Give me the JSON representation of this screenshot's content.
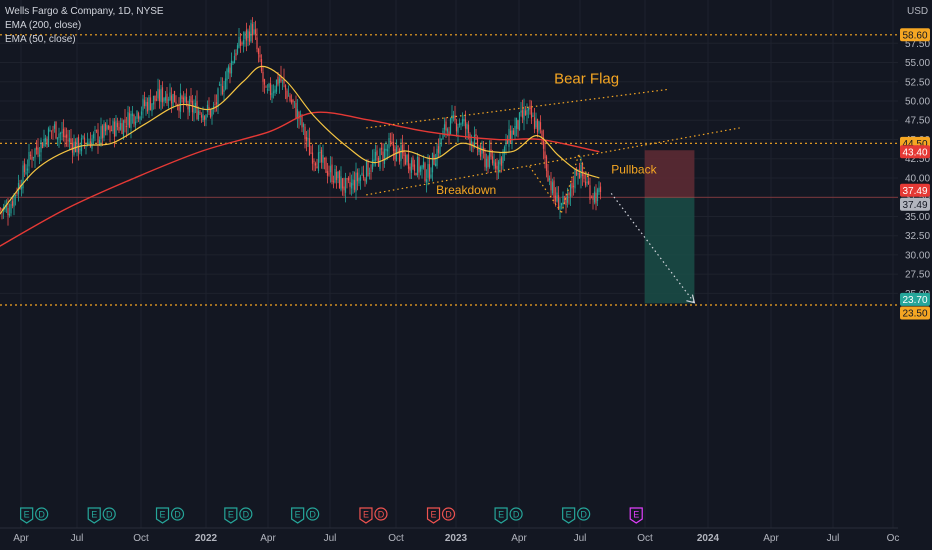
{
  "header": {
    "symbol_line": "Wells Fargo & Company, 1D, NYSE",
    "indicator_1": "EMA (200, close)",
    "indicator_2": "EMA (50, close)"
  },
  "colors": {
    "background": "#131722",
    "grid": "#1e222d",
    "up_candle": "#26a69a",
    "down_candle": "#ef5350",
    "ema200": "#e53935",
    "ema50": "#f5c542",
    "annotation": "#f5a623",
    "horizontal_level": "#f5a623",
    "stop_zone": "#5c2a33",
    "target_zone": "#1a4a45",
    "projection_line": "#d1d4dc"
  },
  "chart_data": {
    "type": "candlestick",
    "currency": "USD",
    "ylim": [
      22.5,
      60.5
    ],
    "y_ticks": [
      25,
      27.5,
      30,
      32.5,
      35,
      37.5,
      40,
      42.5,
      45,
      47.5,
      50,
      52.5,
      55,
      57.5
    ],
    "x_ticks": [
      "Apr",
      "Jul",
      "Oct",
      "2022",
      "Apr",
      "Jul",
      "Oct",
      "2023",
      "Apr",
      "Jul",
      "Oct",
      "2024",
      "Apr",
      "Jul",
      "Oc"
    ],
    "price_badges": [
      {
        "label": "USD",
        "style": "plain"
      },
      {
        "label": "58.60",
        "color": "#f5a623",
        "text_color": "#131722"
      },
      {
        "label": "44.50",
        "color": "#f5a623",
        "text_color": "#131722"
      },
      {
        "label": "43.40",
        "color": "#e53935",
        "text_color": "#ffffff"
      },
      {
        "label": "37.49",
        "color": "#e53935",
        "text_color": "#ffffff"
      },
      {
        "label": "37.49",
        "color": "#b2b5be",
        "text_color": "#131722"
      },
      {
        "label": "23.70",
        "color": "#26a69a",
        "text_color": "#ffffff"
      },
      {
        "label": "23.50",
        "color": "#f5a623",
        "text_color": "#131722"
      }
    ],
    "levels": [
      {
        "price": 58.6,
        "label": "58.60"
      },
      {
        "price": 44.5,
        "label": "44.50"
      },
      {
        "price": 23.5,
        "label": "23.50"
      }
    ],
    "current_price": 37.49,
    "close_path": [
      [
        "2021-03-15",
        36.0
      ],
      [
        "2021-04-15",
        43.0
      ],
      [
        "2021-05-15",
        46.5
      ],
      [
        "2021-06-15",
        44.0
      ],
      [
        "2021-07-15",
        45.5
      ],
      [
        "2021-08-15",
        47.0
      ],
      [
        "2021-09-15",
        49.5
      ],
      [
        "2021-10-15",
        51.0
      ],
      [
        "2021-11-15",
        49.0
      ],
      [
        "2021-12-15",
        48.5
      ],
      [
        "2022-01-15",
        56.5
      ],
      [
        "2022-02-07",
        59.5
      ],
      [
        "2022-02-25",
        50.5
      ],
      [
        "2022-03-15",
        53.0
      ],
      [
        "2022-04-10",
        48.0
      ],
      [
        "2022-04-25",
        43.5
      ],
      [
        "2022-05-15",
        41.5
      ],
      [
        "2022-06-15",
        38.5
      ],
      [
        "2022-07-10",
        41.0
      ],
      [
        "2022-08-10",
        44.0
      ],
      [
        "2022-09-10",
        42.0
      ],
      [
        "2022-10-01",
        40.5
      ],
      [
        "2022-10-25",
        46.5
      ],
      [
        "2022-11-15",
        47.5
      ],
      [
        "2022-12-15",
        42.5
      ],
      [
        "2023-01-05",
        42.0
      ],
      [
        "2023-01-20",
        45.5
      ],
      [
        "2023-02-10",
        48.5
      ],
      [
        "2023-02-28",
        46.5
      ],
      [
        "2023-03-10",
        41.5
      ],
      [
        "2023-03-20",
        37.5
      ],
      [
        "2023-04-05",
        36.0
      ],
      [
        "2023-04-20",
        41.5
      ],
      [
        "2023-05-10",
        38.0
      ],
      [
        "2023-05-22",
        37.49
      ]
    ],
    "ema200_path": [
      [
        "2021-03-01",
        31.0
      ],
      [
        "2021-06-01",
        36.0
      ],
      [
        "2021-09-01",
        40.0
      ],
      [
        "2021-12-01",
        43.5
      ],
      [
        "2022-03-01",
        46.0
      ],
      [
        "2022-05-01",
        48.5
      ],
      [
        "2022-07-15",
        47.5
      ],
      [
        "2022-10-01",
        46.0
      ],
      [
        "2023-01-01",
        45.0
      ],
      [
        "2023-03-01",
        45.0
      ],
      [
        "2023-05-20",
        43.4
      ]
    ],
    "ema50_path": [
      [
        "2021-03-01",
        35.0
      ],
      [
        "2021-04-20",
        41.0
      ],
      [
        "2021-06-15",
        44.0
      ],
      [
        "2021-08-01",
        44.5
      ],
      [
        "2021-09-15",
        47.0
      ],
      [
        "2021-11-01",
        49.5
      ],
      [
        "2021-12-15",
        49.0
      ],
      [
        "2022-01-25",
        52.5
      ],
      [
        "2022-02-20",
        54.5
      ],
      [
        "2022-03-25",
        52.5
      ],
      [
        "2022-05-01",
        48.0
      ],
      [
        "2022-06-15",
        44.0
      ],
      [
        "2022-07-20",
        42.0
      ],
      [
        "2022-08-30",
        43.5
      ],
      [
        "2022-10-10",
        42.5
      ],
      [
        "2022-11-15",
        44.5
      ],
      [
        "2022-12-20",
        43.5
      ],
      [
        "2023-01-25",
        43.5
      ],
      [
        "2023-02-25",
        45.5
      ],
      [
        "2023-03-25",
        43.0
      ],
      [
        "2023-04-20",
        41.0
      ],
      [
        "2023-05-20",
        40.0
      ]
    ],
    "drawings": [
      {
        "type": "line",
        "style": "dotted",
        "from": [
          "2022-07-10",
          37.8
        ],
        "to": [
          "2023-11-25",
          46.5
        ]
      },
      {
        "type": "line",
        "style": "dotted",
        "from": [
          "2022-07-10",
          46.5
        ],
        "to": [
          "2023-08-20",
          51.5
        ]
      },
      {
        "type": "line",
        "style": "dotted",
        "from": [
          "2023-02-15",
          41.5
        ],
        "to": [
          "2023-03-30",
          35.5
        ]
      },
      {
        "type": "line",
        "style": "dotted",
        "from": [
          "2023-03-30",
          35.5
        ],
        "to": [
          "2023-04-22",
          43.0
        ]
      },
      {
        "type": "line",
        "style": "dotted",
        "from": [
          "2023-04-22",
          43.0
        ],
        "to": [
          "2023-05-05",
          40.0
        ]
      },
      {
        "type": "line",
        "style": "dotted",
        "from": [
          "2023-06-05",
          38.0
        ],
        "to": [
          "2023-09-25",
          23.8
        ]
      },
      {
        "type": "zone",
        "role": "stop",
        "from": "2023-07-20",
        "to": "2023-09-25",
        "top": 43.6,
        "bottom": 37.49
      },
      {
        "type": "zone",
        "role": "target",
        "from": "2023-07-20",
        "to": "2023-09-25",
        "top": 37.49,
        "bottom": 23.7
      }
    ],
    "annotations": [
      {
        "text": "Bear Flag",
        "at": [
          "2023-03-20",
          52.3
        ],
        "size": "large"
      },
      {
        "text": "Pullback",
        "at": [
          "2023-06-05",
          40.6
        ],
        "size": "small"
      },
      {
        "text": "Breakdown",
        "at": [
          "2023-01-01",
          37.9
        ],
        "size": "small"
      }
    ],
    "events": [
      {
        "date": "2021-04-14",
        "marks": [
          "E",
          "D"
        ],
        "color": "#26a69a"
      },
      {
        "date": "2021-07-14",
        "marks": [
          "E",
          "D"
        ],
        "color": "#26a69a"
      },
      {
        "date": "2021-10-14",
        "marks": [
          "E",
          "D"
        ],
        "color": "#26a69a"
      },
      {
        "date": "2022-01-14",
        "marks": [
          "E",
          "D"
        ],
        "color": "#26a69a"
      },
      {
        "date": "2022-04-14",
        "marks": [
          "E",
          "D"
        ],
        "color": "#26a69a"
      },
      {
        "date": "2022-07-15",
        "marks": [
          "E",
          "D"
        ],
        "color": "#ef5350"
      },
      {
        "date": "2022-10-14",
        "marks": [
          "E",
          "D"
        ],
        "color": "#ef5350"
      },
      {
        "date": "2023-01-13",
        "marks": [
          "E",
          "D"
        ],
        "color": "#26a69a"
      },
      {
        "date": "2023-04-14",
        "marks": [
          "E",
          "D"
        ],
        "color": "#26a69a"
      },
      {
        "date": "2023-07-14",
        "marks": [
          "E"
        ],
        "color": "#e040fb",
        "upcoming": true
      }
    ]
  }
}
